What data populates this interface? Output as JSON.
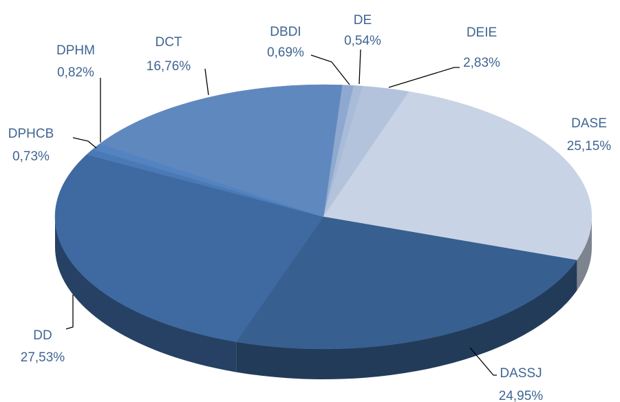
{
  "chart_data": {
    "type": "pie",
    "categories": [
      "DBDI",
      "DE",
      "DEIE",
      "DASE",
      "DASSJ",
      "DD",
      "DPHCB",
      "DPHM",
      "DCT"
    ],
    "values": [
      0.69,
      0.54,
      2.83,
      25.15,
      24.95,
      27.53,
      0.73,
      0.82,
      16.76
    ],
    "value_labels": [
      "0,69%",
      "0,54%",
      "2,83%",
      "25,15%",
      "24,95%",
      "27,53%",
      "0,73%",
      "0,82%",
      "16,76%"
    ],
    "colors": [
      "#8fa8cf",
      "#a8bbd8",
      "#b4c3dc",
      "#c9d3e6",
      "#375f8f",
      "#3e69a1",
      "#4a7ab5",
      "#5384c1",
      "#5f88bf"
    ]
  }
}
